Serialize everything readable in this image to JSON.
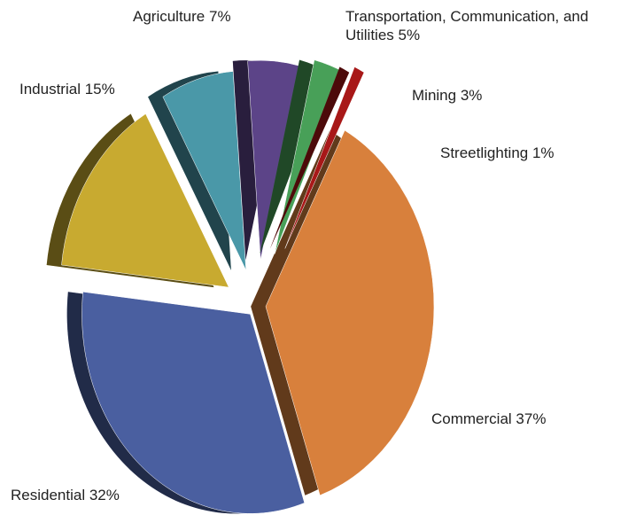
{
  "chart_data": {
    "type": "pie",
    "categories": [
      "Commercial",
      "Residential",
      "Industrial",
      "Agriculture",
      "Transportation, Communication, and Utilities",
      "Mining",
      "Streetlighting"
    ],
    "values": [
      37,
      32,
      15,
      7,
      5,
      3,
      1
    ],
    "value_labels": [
      "37%",
      "32%",
      "15%",
      "7%",
      "5%",
      "3%",
      "1%"
    ],
    "colors": [
      "#d8803c",
      "#4a5fa0",
      "#c8aa30",
      "#4a98a8",
      "#5c4488",
      "#48a058",
      "#a81818"
    ]
  }
}
